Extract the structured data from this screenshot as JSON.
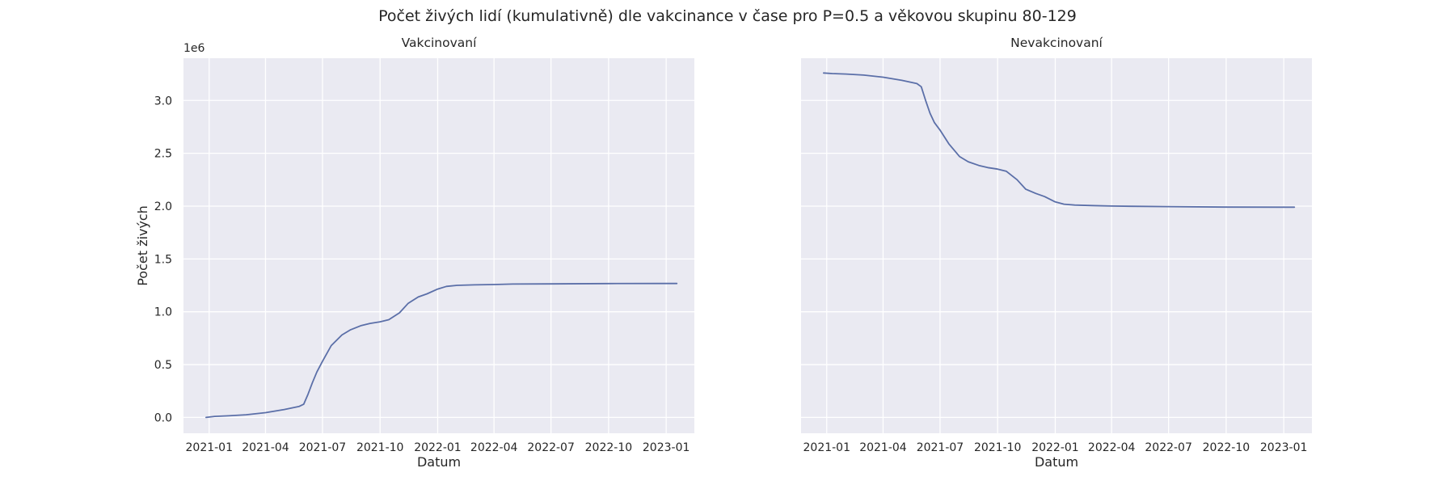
{
  "figure": {
    "suptitle": "Počet živých lidí (kumulativně) dle vakcinance v čase pro P=0.5 a věkovou skupinu 80-129",
    "scale_label": "1e6"
  },
  "chart_data": [
    {
      "type": "line",
      "title": "Vakcinovaní",
      "xlabel": "Datum",
      "ylabel": "Počet živých",
      "y_scale_label": "1e6",
      "x_ticks": [
        "2021-01",
        "2021-04",
        "2021-07",
        "2021-10",
        "2022-01",
        "2022-04",
        "2022-07",
        "2022-10",
        "2023-01"
      ],
      "y_ticks": [
        "0.0",
        "0.5",
        "1.0",
        "1.5",
        "2.0",
        "2.5",
        "3.0"
      ],
      "ylim": [
        -150000,
        3400000
      ],
      "xlim": [
        "2020-11-21",
        "2023-02-15"
      ],
      "grid": true,
      "color": "#5b6fa8",
      "series": [
        {
          "x": [
            "2020-12-27",
            "2021-01-10",
            "2021-02-01",
            "2021-03-01",
            "2021-04-01",
            "2021-05-01",
            "2021-05-25",
            "2021-06-01",
            "2021-06-08",
            "2021-06-15",
            "2021-06-22",
            "2021-07-01",
            "2021-07-15",
            "2021-08-01",
            "2021-08-15",
            "2021-09-01",
            "2021-09-15",
            "2021-10-01",
            "2021-10-15",
            "2021-11-01",
            "2021-11-15",
            "2021-12-01",
            "2021-12-15",
            "2022-01-01",
            "2022-01-15",
            "2022-02-01",
            "2022-03-01",
            "2022-04-01",
            "2022-05-01",
            "2022-07-01",
            "2022-10-01",
            "2023-01-01",
            "2023-01-18"
          ],
          "y": [
            0,
            10000,
            15000,
            25000,
            45000,
            75000,
            105000,
            125000,
            220000,
            330000,
            430000,
            530000,
            680000,
            780000,
            830000,
            870000,
            890000,
            905000,
            925000,
            990000,
            1080000,
            1140000,
            1170000,
            1215000,
            1240000,
            1250000,
            1255000,
            1258000,
            1262000,
            1264000,
            1267000,
            1268000,
            1268000
          ]
        }
      ]
    },
    {
      "type": "line",
      "title": "Nevakcinovaní",
      "xlabel": "Datum",
      "ylabel": "",
      "x_ticks": [
        "2021-01",
        "2021-04",
        "2021-07",
        "2021-10",
        "2022-01",
        "2022-04",
        "2022-07",
        "2022-10",
        "2023-01"
      ],
      "ylim": [
        -150000,
        3400000
      ],
      "xlim": [
        "2020-11-21",
        "2023-02-15"
      ],
      "grid": true,
      "color": "#5b6fa8",
      "series": [
        {
          "x": [
            "2020-12-27",
            "2021-01-10",
            "2021-02-01",
            "2021-03-01",
            "2021-04-01",
            "2021-05-01",
            "2021-05-25",
            "2021-06-01",
            "2021-06-08",
            "2021-06-15",
            "2021-06-22",
            "2021-07-01",
            "2021-07-15",
            "2021-08-01",
            "2021-08-15",
            "2021-09-01",
            "2021-09-15",
            "2021-10-01",
            "2021-10-15",
            "2021-11-01",
            "2021-11-15",
            "2021-12-01",
            "2021-12-15",
            "2022-01-01",
            "2022-01-15",
            "2022-02-01",
            "2022-03-01",
            "2022-04-01",
            "2022-05-01",
            "2022-07-01",
            "2022-10-01",
            "2023-01-01",
            "2023-01-18"
          ],
          "y": [
            3260000,
            3255000,
            3250000,
            3240000,
            3220000,
            3190000,
            3160000,
            3130000,
            3000000,
            2880000,
            2790000,
            2720000,
            2590000,
            2470000,
            2420000,
            2385000,
            2365000,
            2350000,
            2330000,
            2250000,
            2160000,
            2120000,
            2090000,
            2040000,
            2018000,
            2010000,
            2005000,
            2001000,
            1998000,
            1995000,
            1991000,
            1990000,
            1990000
          ]
        }
      ]
    }
  ]
}
